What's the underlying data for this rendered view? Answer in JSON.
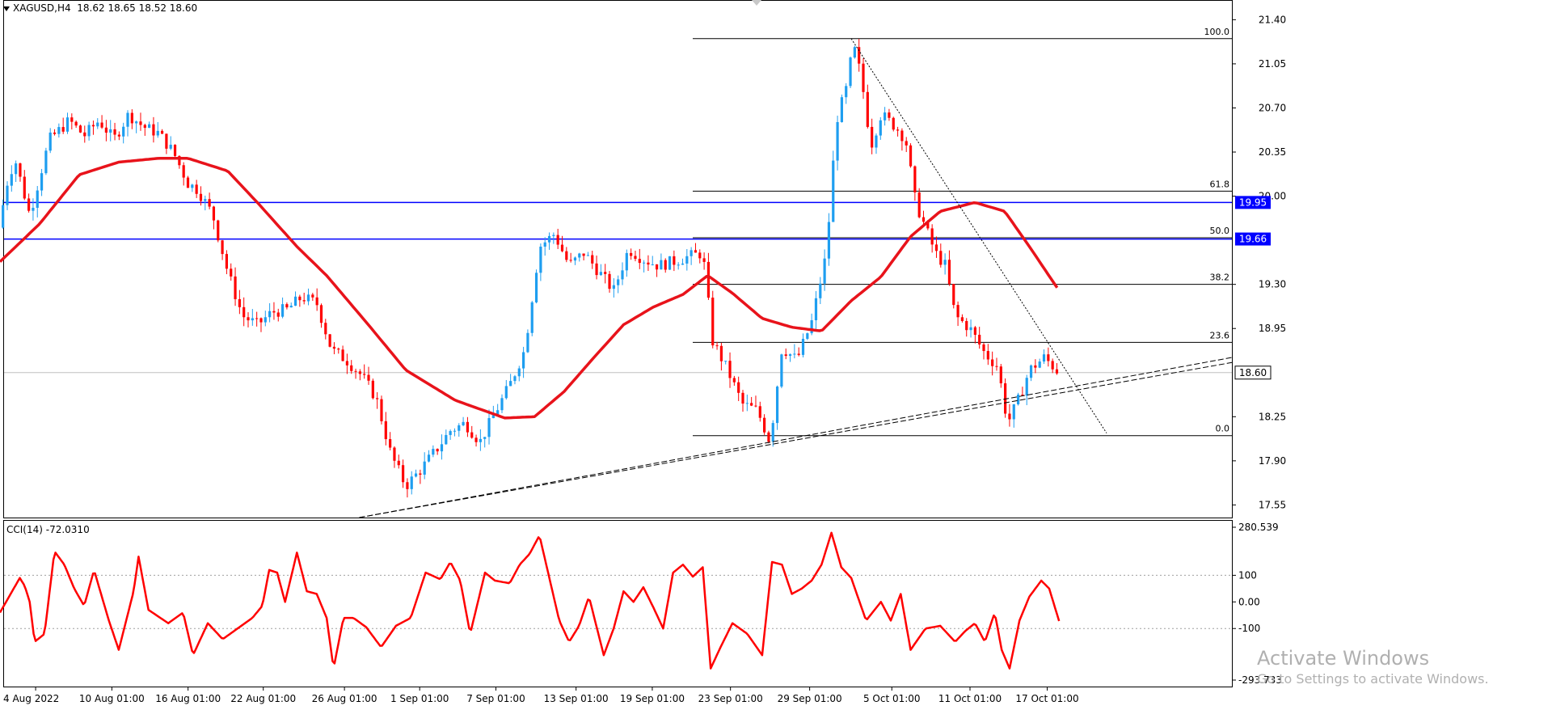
{
  "header": {
    "symbol": "XAGUSD,H4",
    "ohlc": "18.62 18.65 18.52 18.60"
  },
  "indicator": {
    "label": "CCI(14) -72.0310",
    "ticks": [
      "280.539",
      "100",
      "0.00",
      "-100",
      "-293.733"
    ]
  },
  "price_axis": {
    "ticks": [
      "21.40",
      "21.05",
      "20.70",
      "20.35",
      "20.00",
      "19.30",
      "18.95",
      "18.25",
      "17.90",
      "17.55"
    ],
    "hline_labels": [
      "19.95",
      "19.66"
    ],
    "current_price": "18.60"
  },
  "time_axis": {
    "labels": [
      "4 Aug 2022",
      "10 Aug 01:00",
      "16 Aug 01:00",
      "22 Aug 01:00",
      "26 Aug 01:00",
      "1 Sep 01:00",
      "7 Sep 01:00",
      "13 Sep 01:00",
      "19 Sep 01:00",
      "23 Sep 01:00",
      "29 Sep 01:00",
      "5 Oct 01:00",
      "11 Oct 01:00",
      "17 Oct 01:00"
    ]
  },
  "fibonacci": {
    "levels": [
      {
        "label": "100.0",
        "price": 21.25
      },
      {
        "label": "61.8",
        "price": 20.04
      },
      {
        "label": "50.0",
        "price": 19.67
      },
      {
        "label": "38.2",
        "price": 19.3
      },
      {
        "label": "23.6",
        "price": 18.84
      },
      {
        "label": "0.0",
        "price": 18.1
      }
    ]
  },
  "watermark": {
    "title": "Activate Windows",
    "subtitle": "Go to Settings to activate Windows."
  },
  "colors": {
    "bull": "#1e9ef0",
    "bear": "#ff0000",
    "ma": "#e8131b",
    "hline": "#0000ff",
    "cci": "#ff0000",
    "label_bg": "#0000ff"
  },
  "chart_data": {
    "type": "candlestick",
    "price_range": [
      17.45,
      21.55
    ],
    "hlines": [
      19.95,
      19.66
    ],
    "close_anchors": [
      [
        0,
        19.75
      ],
      [
        5,
        20.05
      ],
      [
        15,
        20.3
      ],
      [
        30,
        19.85
      ],
      [
        50,
        20.45
      ],
      [
        70,
        20.6
      ],
      [
        85,
        20.48
      ],
      [
        100,
        20.6
      ],
      [
        115,
        20.45
      ],
      [
        130,
        20.65
      ],
      [
        145,
        20.55
      ],
      [
        160,
        20.5
      ],
      [
        175,
        20.35
      ],
      [
        190,
        20.1
      ],
      [
        200,
        20.05
      ],
      [
        215,
        19.85
      ],
      [
        230,
        19.4
      ],
      [
        245,
        19.05
      ],
      [
        260,
        18.98
      ],
      [
        275,
        19.08
      ],
      [
        290,
        19.1
      ],
      [
        305,
        19.2
      ],
      [
        320,
        19.15
      ],
      [
        335,
        18.78
      ],
      [
        350,
        18.7
      ],
      [
        365,
        18.58
      ],
      [
        380,
        18.4
      ],
      [
        395,
        17.95
      ],
      [
        410,
        17.7
      ],
      [
        425,
        17.83
      ],
      [
        440,
        17.98
      ],
      [
        455,
        18.14
      ],
      [
        470,
        18.2
      ],
      [
        485,
        18.05
      ],
      [
        500,
        18.28
      ],
      [
        515,
        18.5
      ],
      [
        530,
        18.78
      ],
      [
        545,
        19.6
      ],
      [
        560,
        19.7
      ],
      [
        575,
        19.45
      ],
      [
        590,
        19.55
      ],
      [
        605,
        19.4
      ],
      [
        620,
        19.25
      ],
      [
        635,
        19.58
      ],
      [
        650,
        19.5
      ],
      [
        665,
        19.45
      ],
      [
        680,
        19.48
      ],
      [
        695,
        19.52
      ],
      [
        710,
        19.55
      ],
      [
        720,
        18.85
      ],
      [
        735,
        18.62
      ],
      [
        750,
        18.35
      ],
      [
        765,
        18.3
      ],
      [
        778,
        18.05
      ],
      [
        790,
        18.8
      ],
      [
        805,
        18.7
      ],
      [
        820,
        19.0
      ],
      [
        835,
        19.55
      ],
      [
        845,
        20.6
      ],
      [
        855,
        20.85
      ],
      [
        862,
        21.2
      ],
      [
        870,
        20.95
      ],
      [
        880,
        20.4
      ],
      [
        890,
        20.65
      ],
      [
        905,
        20.55
      ],
      [
        915,
        20.45
      ],
      [
        925,
        19.95
      ],
      [
        935,
        19.75
      ],
      [
        945,
        19.55
      ],
      [
        955,
        19.45
      ],
      [
        965,
        19.05
      ],
      [
        980,
        18.95
      ],
      [
        995,
        18.75
      ],
      [
        1008,
        18.65
      ],
      [
        1018,
        18.2
      ],
      [
        1030,
        18.4
      ],
      [
        1040,
        18.62
      ],
      [
        1055,
        18.72
      ],
      [
        1070,
        18.6
      ]
    ],
    "ma_anchors": [
      [
        0,
        19.48
      ],
      [
        40,
        19.78
      ],
      [
        80,
        20.17
      ],
      [
        120,
        20.27
      ],
      [
        160,
        20.3
      ],
      [
        190,
        20.3
      ],
      [
        230,
        20.2
      ],
      [
        260,
        19.95
      ],
      [
        300,
        19.6
      ],
      [
        330,
        19.37
      ],
      [
        370,
        19.0
      ],
      [
        410,
        18.62
      ],
      [
        460,
        18.38
      ],
      [
        510,
        18.24
      ],
      [
        540,
        18.25
      ],
      [
        570,
        18.45
      ],
      [
        600,
        18.72
      ],
      [
        630,
        18.98
      ],
      [
        660,
        19.12
      ],
      [
        690,
        19.22
      ],
      [
        715,
        19.37
      ],
      [
        740,
        19.23
      ],
      [
        770,
        19.03
      ],
      [
        800,
        18.96
      ],
      [
        830,
        18.93
      ],
      [
        860,
        19.17
      ],
      [
        890,
        19.36
      ],
      [
        920,
        19.68
      ],
      [
        950,
        19.88
      ],
      [
        985,
        19.95
      ],
      [
        1015,
        19.88
      ],
      [
        1040,
        19.6
      ],
      [
        1070,
        19.25
      ]
    ],
    "trendlines": [
      {
        "from": [
          363,
          17.45
        ],
        "to": [
          1525,
          18.72
        ],
        "style": "dashed"
      },
      {
        "from": [
          363,
          17.45
        ],
        "to": [
          1525,
          18.68
        ],
        "style": "dashed"
      },
      {
        "from": [
          860,
          21.25
        ],
        "to": [
          1118,
          18.12
        ],
        "style": "dotted"
      }
    ],
    "fib_x_range": [
      857,
      1525
    ],
    "cci": {
      "range": [
        -293.733,
        280.539
      ],
      "anchors": [
        [
          0,
          -40
        ],
        [
          10,
          25
        ],
        [
          20,
          90
        ],
        [
          25,
          60
        ],
        [
          30,
          0
        ],
        [
          35,
          -150
        ],
        [
          45,
          -120
        ],
        [
          55,
          190
        ],
        [
          65,
          140
        ],
        [
          75,
          50
        ],
        [
          85,
          -15
        ],
        [
          95,
          120
        ],
        [
          110,
          -70
        ],
        [
          120,
          -180
        ],
        [
          135,
          40
        ],
        [
          140,
          170
        ],
        [
          150,
          -30
        ],
        [
          160,
          -55
        ],
        [
          170,
          -80
        ],
        [
          185,
          -40
        ],
        [
          195,
          -200
        ],
        [
          210,
          -80
        ],
        [
          225,
          -140
        ],
        [
          240,
          -100
        ],
        [
          255,
          -60
        ],
        [
          265,
          -15
        ],
        [
          272,
          120
        ],
        [
          280,
          110
        ],
        [
          288,
          0
        ],
        [
          300,
          185
        ],
        [
          310,
          40
        ],
        [
          320,
          30
        ],
        [
          330,
          -60
        ],
        [
          337,
          -250
        ],
        [
          347,
          -60
        ],
        [
          357,
          -60
        ],
        [
          370,
          -95
        ],
        [
          385,
          -170
        ],
        [
          400,
          -90
        ],
        [
          415,
          -60
        ],
        [
          430,
          110
        ],
        [
          445,
          85
        ],
        [
          455,
          150
        ],
        [
          465,
          80
        ],
        [
          475,
          -120
        ],
        [
          490,
          110
        ],
        [
          500,
          80
        ],
        [
          515,
          70
        ],
        [
          525,
          140
        ],
        [
          535,
          180
        ],
        [
          545,
          250
        ],
        [
          555,
          90
        ],
        [
          565,
          -70
        ],
        [
          575,
          -150
        ],
        [
          585,
          -90
        ],
        [
          595,
          20
        ],
        [
          610,
          -200
        ],
        [
          620,
          -100
        ],
        [
          630,
          40
        ],
        [
          640,
          0
        ],
        [
          650,
          55
        ],
        [
          660,
          -20
        ],
        [
          670,
          -100
        ],
        [
          680,
          110
        ],
        [
          690,
          140
        ],
        [
          700,
          95
        ],
        [
          710,
          130
        ],
        [
          718,
          -250
        ],
        [
          728,
          -170
        ],
        [
          740,
          -80
        ],
        [
          755,
          -120
        ],
        [
          770,
          -200
        ],
        [
          780,
          150
        ],
        [
          790,
          140
        ],
        [
          800,
          30
        ],
        [
          810,
          50
        ],
        [
          820,
          80
        ],
        [
          830,
          140
        ],
        [
          840,
          260
        ],
        [
          850,
          130
        ],
        [
          860,
          90
        ],
        [
          875,
          -70
        ],
        [
          890,
          0
        ],
        [
          900,
          -70
        ],
        [
          910,
          30
        ],
        [
          920,
          -180
        ],
        [
          935,
          -100
        ],
        [
          950,
          -90
        ],
        [
          965,
          -150
        ],
        [
          975,
          -110
        ],
        [
          985,
          -80
        ],
        [
          995,
          -150
        ],
        [
          1005,
          -40
        ],
        [
          1012,
          -180
        ],
        [
          1020,
          -250
        ],
        [
          1030,
          -70
        ],
        [
          1040,
          20
        ],
        [
          1052,
          80
        ],
        [
          1060,
          50
        ],
        [
          1070,
          -72
        ]
      ]
    }
  }
}
